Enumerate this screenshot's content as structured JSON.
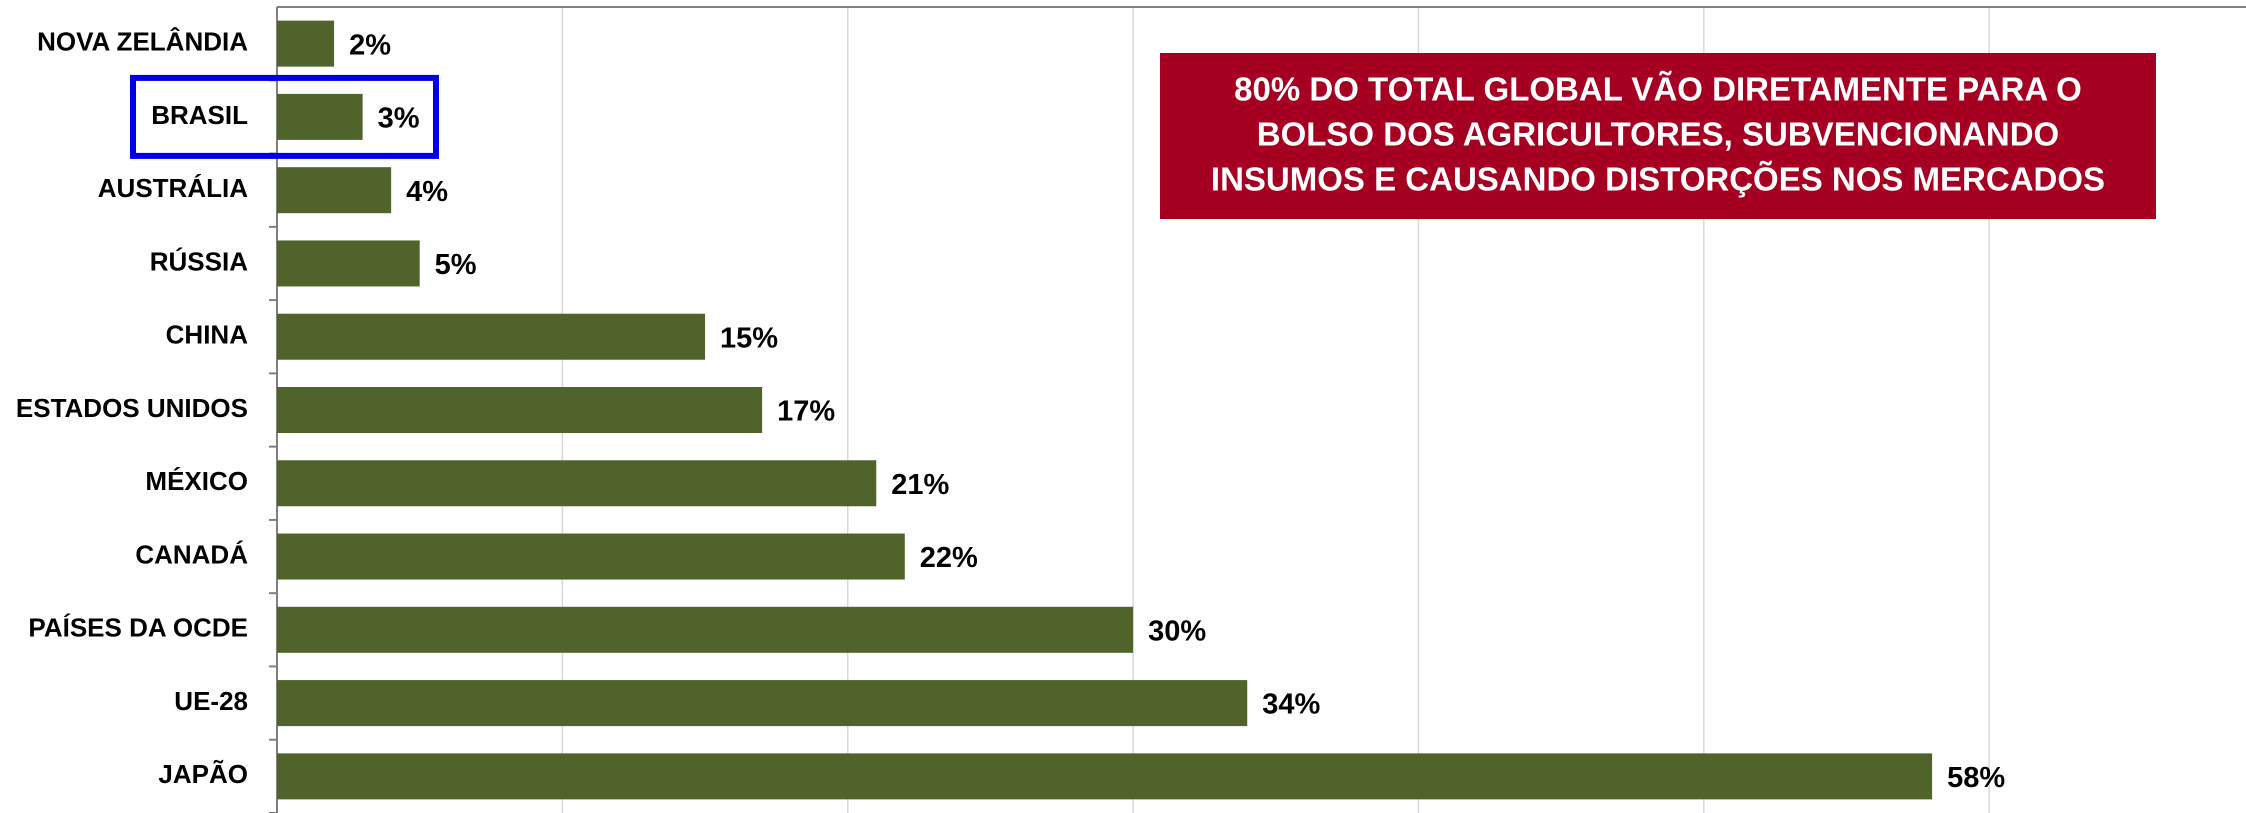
{
  "chart_data": {
    "type": "bar",
    "orientation": "horizontal",
    "categories": [
      "NOVA ZELÂNDIA",
      "BRASIL",
      "AUSTRÁLIA",
      "RÚSSIA",
      "CHINA",
      "ESTADOS UNIDOS",
      "MÉXICO",
      "CANADÁ",
      "PAÍSES DA OCDE",
      "UE-28",
      "JAPÃO"
    ],
    "values": [
      2,
      3,
      4,
      5,
      15,
      17,
      21,
      22,
      30,
      34,
      58
    ],
    "value_labels": [
      "2%",
      "3%",
      "4%",
      "5%",
      "15%",
      "17%",
      "21%",
      "22%",
      "30%",
      "34%",
      "58%"
    ],
    "color": "#4f632a",
    "xlim": [
      0,
      69
    ],
    "xticks": [
      0,
      10,
      20,
      30,
      40,
      50,
      60
    ],
    "grid": true,
    "annotation": [
      "80% DO TOTAL GLOBAL VÃO DIRETAMENTE PARA O",
      "BOLSO DOS AGRICULTORES, SUBVENCIONANDO",
      "INSUMOS E CAUSANDO DISTORÇÕES NOS MERCADOS"
    ]
  }
}
